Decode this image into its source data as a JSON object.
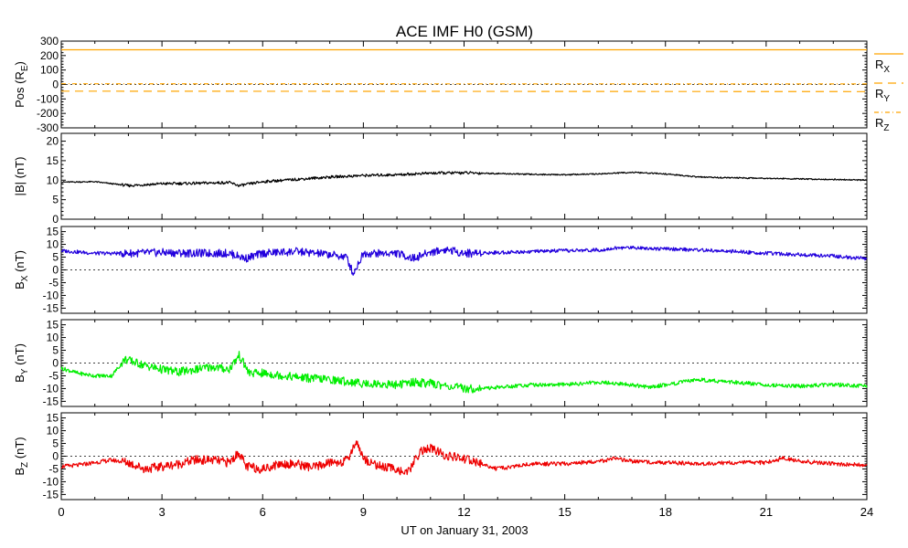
{
  "chart_data": {
    "type": "line",
    "title": "ACE IMF H0 (GSM)",
    "xlabel": "UT on January 31, 2003",
    "xlim": [
      0,
      24
    ],
    "xticks": [
      "0",
      "3",
      "6",
      "9",
      "12",
      "15",
      "18",
      "21",
      "24"
    ],
    "panels": [
      {
        "ylabel": "Pos (R",
        "ylabel_sub": "E",
        "ylabel_tail": ")",
        "ylim": [
          -300,
          300
        ],
        "yticks": [
          "300",
          "200",
          "100",
          "0",
          "-100",
          "-200",
          "-300"
        ],
        "zero_line": true,
        "series": [
          {
            "name": "R",
            "name_sub": "X",
            "color": "#FFA500",
            "style": "solid",
            "x": [
              0,
              24
            ],
            "y": [
              240,
              240
            ]
          },
          {
            "name": "R",
            "name_sub": "Y",
            "color": "#FFA500",
            "style": "dash",
            "x": [
              0,
              24
            ],
            "y": [
              -46,
              -49
            ]
          },
          {
            "name": "R",
            "name_sub": "Z",
            "color": "#FFA500",
            "style": "dashdot",
            "x": [
              0,
              24
            ],
            "y": [
              5,
              4
            ]
          }
        ]
      },
      {
        "ylabel": "|B| (nT)",
        "ylim": [
          0,
          22
        ],
        "yticks": [
          "20",
          "15",
          "10",
          "5",
          "0"
        ],
        "zero_line": false,
        "series": [
          {
            "name": "",
            "color": "#000000",
            "style": "solid",
            "x": [
              0,
              1,
              2,
              3,
              4,
              5,
              5.3,
              6,
              7,
              8,
              9,
              10,
              11,
              12,
              13,
              14,
              15,
              16,
              17,
              18,
              19,
              20,
              21,
              22,
              23,
              24
            ],
            "y": [
              9.5,
              9.6,
              8.6,
              9.1,
              9.2,
              9.4,
              8.6,
              9.6,
              10.2,
              10.8,
              11.2,
              11.4,
              11.8,
              11.9,
              11.7,
              11.5,
              11.4,
              11.6,
              12,
              11.6,
              10.8,
              10.6,
              10.5,
              10.3,
              10.2,
              10
            ]
          }
        ]
      },
      {
        "ylabel": "B",
        "ylabel_sub": "X",
        "ylabel_tail": " (nT)",
        "ylim": [
          -17,
          17
        ],
        "yticks": [
          "15",
          "10",
          "5",
          "0",
          "-5",
          "-10",
          "-15"
        ],
        "zero_line": true,
        "series": [
          {
            "name": "",
            "color": "#2200DD",
            "style": "solid",
            "x": [
              0,
              1,
              2,
              3,
              4,
              5,
              5.5,
              6,
              7,
              8,
              8.5,
              8.7,
              9,
              10,
              10.5,
              11,
              11.5,
              12,
              13,
              14,
              15,
              16,
              16.5,
              17,
              18,
              19,
              20,
              21,
              22,
              23,
              23.5,
              24
            ],
            "y": [
              7.5,
              6.5,
              6.5,
              6.8,
              6.5,
              6.5,
              4.5,
              6.5,
              7.2,
              6,
              5,
              -1.5,
              6.5,
              6.5,
              4.5,
              7,
              8,
              6.5,
              6.8,
              7.2,
              7.5,
              7.8,
              8.5,
              8.8,
              8.2,
              7.8,
              7.2,
              6.5,
              6,
              5.5,
              4.8,
              4.5
            ]
          }
        ]
      },
      {
        "ylabel": "B",
        "ylabel_sub": "Y",
        "ylabel_tail": " (nT)",
        "ylim": [
          -17,
          17
        ],
        "yticks": [
          "15",
          "10",
          "5",
          "0",
          "-5",
          "-10",
          "-15"
        ],
        "zero_line": true,
        "series": [
          {
            "name": "",
            "color": "#00EE00",
            "style": "solid",
            "x": [
              0,
              0.5,
              1,
              1.5,
              1.9,
              2.5,
              3,
              3.5,
              4,
              4.5,
              5,
              5.3,
              5.6,
              6,
              7,
              8,
              9,
              10,
              10.5,
              11,
              12,
              12.5,
              13,
              14,
              15,
              16,
              17,
              17.5,
              18,
              19,
              20,
              21,
              22,
              23,
              24
            ],
            "y": [
              -2,
              -4,
              -5,
              -5,
              1.5,
              -1,
              -2.5,
              -3.5,
              -2.5,
              -1.5,
              -2.5,
              3,
              -4,
              -4,
              -5.5,
              -6.5,
              -8,
              -8.5,
              -7.5,
              -8,
              -10,
              -10,
              -9.5,
              -8.5,
              -8.5,
              -7.5,
              -8.5,
              -9.5,
              -8.5,
              -6.5,
              -7.5,
              -8.5,
              -9,
              -8.5,
              -9
            ]
          }
        ]
      },
      {
        "ylabel": "B",
        "ylabel_sub": "Z",
        "ylabel_tail": " (nT)",
        "ylim": [
          -17,
          17
        ],
        "yticks": [
          "15",
          "10",
          "5",
          "0",
          "-5",
          "-10",
          "-15"
        ],
        "zero_line": true,
        "series": [
          {
            "name": "",
            "color": "#EE0000",
            "style": "solid",
            "x": [
              0,
              0.5,
              1,
              1.5,
              2,
              2.5,
              3,
              3.5,
              4,
              4.5,
              5,
              5.3,
              5.5,
              6,
              6.5,
              7,
              7.5,
              8,
              8.5,
              8.8,
              9,
              9.5,
              10,
              10.3,
              10.7,
              11,
              11.5,
              12,
              12.5,
              13,
              14,
              15,
              16,
              16.5,
              17,
              18,
              19,
              20,
              21,
              21.5,
              22,
              23,
              24
            ],
            "y": [
              -4,
              -3.5,
              -2.5,
              -1.5,
              -2.5,
              -5,
              -4,
              -3,
              -1.5,
              -1.5,
              -2.5,
              1.5,
              -4,
              -5,
              -3,
              -3,
              -4.5,
              -2.5,
              -2,
              6,
              -1,
              -4,
              -5,
              -7,
              2,
              3,
              0,
              -1,
              -3,
              -5,
              -3,
              -3,
              -2,
              -1,
              -2,
              -2.5,
              -3,
              -2.5,
              -2.5,
              -0.8,
              -2,
              -3,
              -3.5
            ]
          }
        ]
      }
    ]
  }
}
